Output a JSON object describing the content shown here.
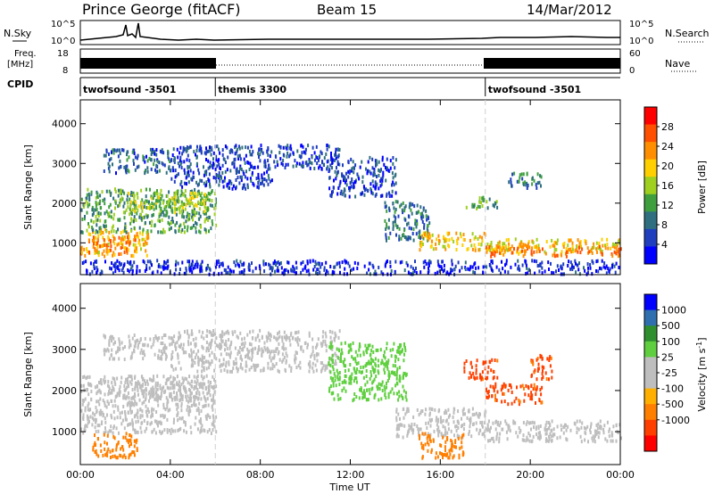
{
  "header": {
    "station": "Prince George (fitACF)",
    "beam": "Beam 15",
    "date": "14/Mar/2012"
  },
  "colors": {
    "power": [
      "#0000ff",
      "#1f3fbf",
      "#2f6f7f",
      "#3f9f3f",
      "#9fcf1f",
      "#ffcf00",
      "#ff8f00",
      "#ff4f00",
      "#ff0000"
    ],
    "velocity": [
      "#ff0000",
      "#ff3f00",
      "#ff7f00",
      "#ffaf00",
      "#bebebe",
      "#bebebe",
      "#5fcf3f",
      "#2f8f2f",
      "#2f6faf",
      "#0000ff"
    ]
  },
  "panels": {
    "nsky": {
      "label": "N.Sky",
      "ticks_left": [
        "10^5",
        "10^0"
      ],
      "ticks_right": [
        "10^5",
        "10^0"
      ],
      "right_label": "N.Search"
    },
    "freq": {
      "label_lines": [
        "Freq.",
        "[MHz]"
      ],
      "ticks_left": [
        "18",
        "8"
      ],
      "ticks_right": [
        "60",
        "0"
      ],
      "right_label": "Nave"
    },
    "cpid": {
      "label": "CPID",
      "segments": [
        {
          "name": "twofsound -3501",
          "start_h": 0,
          "end_h": 6
        },
        {
          "name": "themis 3300",
          "start_h": 6,
          "end_h": 18
        },
        {
          "name": "twofsound -3501",
          "start_h": 18,
          "end_h": 24
        }
      ]
    }
  },
  "chart_data": [
    {
      "type": "heatmap",
      "quantity": "power",
      "ylabel": "Slant Range [km]",
      "yticks": [
        1000,
        2000,
        3000,
        4000
      ],
      "ylim": [
        200,
        4600
      ],
      "xlim": [
        0,
        24
      ],
      "colorbar": {
        "label": "Power [dB]",
        "ticks": [
          4,
          8,
          12,
          16,
          20,
          24,
          28
        ],
        "range": [
          0,
          32
        ]
      },
      "scatter_regions": [
        {
          "x": [
            0.0,
            3.0
          ],
          "y": [
            700,
            1400
          ],
          "v": 24
        },
        {
          "x": [
            0.5,
            2.2
          ],
          "y": [
            800,
            1200
          ],
          "v": 28
        },
        {
          "x": [
            0.0,
            6.0
          ],
          "y": [
            1300,
            2400
          ],
          "v": 14
        },
        {
          "x": [
            2.0,
            6.0
          ],
          "y": [
            1800,
            2300
          ],
          "v": 18
        },
        {
          "x": [
            1.0,
            4.0
          ],
          "y": [
            2800,
            3400
          ],
          "v": 8
        },
        {
          "x": [
            4.0,
            8.5
          ],
          "y": [
            2400,
            3500
          ],
          "v": 6
        },
        {
          "x": [
            8.5,
            11.5
          ],
          "y": [
            2900,
            3500
          ],
          "v": 6
        },
        {
          "x": [
            11.0,
            14.0
          ],
          "y": [
            2200,
            3200
          ],
          "v": 6
        },
        {
          "x": [
            13.5,
            15.5
          ],
          "y": [
            1100,
            2100
          ],
          "v": 10
        },
        {
          "x": [
            15.0,
            18.0
          ],
          "y": [
            850,
            1300
          ],
          "v": 22
        },
        {
          "x": [
            18.0,
            24.0
          ],
          "y": [
            800,
            1150
          ],
          "v": 22
        },
        {
          "x": [
            18.0,
            24.0
          ],
          "y": [
            700,
            950
          ],
          "v": 28
        },
        {
          "x": [
            17.0,
            18.5
          ],
          "y": [
            1900,
            2200
          ],
          "v": 14
        },
        {
          "x": [
            19.0,
            20.5
          ],
          "y": [
            2400,
            2800
          ],
          "v": 10
        },
        {
          "x": [
            0.0,
            24.0
          ],
          "y": [
            250,
            600
          ],
          "v": 4
        }
      ]
    },
    {
      "type": "heatmap",
      "quantity": "velocity",
      "ylabel": "Slant Range [km]",
      "xlabel": "Time UT",
      "xticks": [
        "00:00",
        "04:00",
        "08:00",
        "12:00",
        "16:00",
        "20:00",
        "00:00"
      ],
      "yticks": [
        1000,
        2000,
        3000,
        4000
      ],
      "ylim": [
        200,
        4600
      ],
      "xlim": [
        0,
        24
      ],
      "colorbar": {
        "label": "Velocity [m s^-1]",
        "ticks": [
          1000,
          500,
          100,
          25,
          -25,
          -100,
          -500,
          -1000
        ]
      },
      "scatter_regions": [
        {
          "x": [
            0.0,
            6.0
          ],
          "y": [
            1000,
            2400
          ],
          "v": 0
        },
        {
          "x": [
            2.0,
            6.0
          ],
          "y": [
            1800,
            2300
          ],
          "v": 0
        },
        {
          "x": [
            1.0,
            4.0
          ],
          "y": [
            2800,
            3400
          ],
          "v": 0
        },
        {
          "x": [
            4.0,
            11.5
          ],
          "y": [
            2500,
            3500
          ],
          "v": 0
        },
        {
          "x": [
            11.0,
            14.5
          ],
          "y": [
            1800,
            3200
          ],
          "v": 50
        },
        {
          "x": [
            14.0,
            18.0
          ],
          "y": [
            900,
            1600
          ],
          "v": 0
        },
        {
          "x": [
            18.0,
            24.0
          ],
          "y": [
            800,
            1300
          ],
          "v": 0
        },
        {
          "x": [
            0.5,
            2.5
          ],
          "y": [
            400,
            1000
          ],
          "v": -300
        },
        {
          "x": [
            15.0,
            17.0
          ],
          "y": [
            400,
            1000
          ],
          "v": -300
        },
        {
          "x": [
            17.0,
            18.5
          ],
          "y": [
            2300,
            2800
          ],
          "v": -600
        },
        {
          "x": [
            18.0,
            20.5
          ],
          "y": [
            1700,
            2200
          ],
          "v": -600
        },
        {
          "x": [
            20.0,
            21.0
          ],
          "y": [
            2300,
            2900
          ],
          "v": -600
        }
      ]
    }
  ]
}
